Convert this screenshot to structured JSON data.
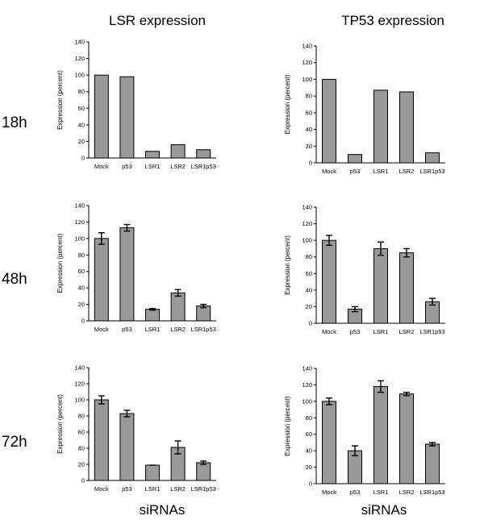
{
  "column_titles": [
    "LSR expression",
    "TP53 expression"
  ],
  "row_labels": [
    "18h",
    "48h",
    "72h"
  ],
  "x_axis_title": "siRNAs",
  "y_axis_label": "Expression (percent)",
  "chart_data": [
    {
      "type": "bar",
      "title": "LSR expression",
      "timepoint": "18h",
      "categories": [
        "Mock",
        "p53",
        "LSR1",
        "LSR2",
        "LSR1p53"
      ],
      "values": [
        100,
        98,
        8,
        16,
        10
      ],
      "errors": null,
      "ylabel": "Expression (percent)",
      "xlabel": "",
      "ylim": [
        0,
        140
      ],
      "yticks": [
        0,
        20,
        40,
        60,
        80,
        100,
        120,
        140
      ]
    },
    {
      "type": "bar",
      "title": "TP53 expression",
      "timepoint": "18h",
      "categories": [
        "Mock",
        "p53",
        "LSR1",
        "LSR2",
        "LSR1p53"
      ],
      "values": [
        100,
        10,
        87,
        85,
        12
      ],
      "errors": null,
      "ylabel": "Expression (percent)",
      "xlabel": "",
      "ylim": [
        0,
        140
      ],
      "yticks": [
        0,
        20,
        40,
        60,
        80,
        100,
        120,
        140
      ]
    },
    {
      "type": "bar",
      "title": "LSR expression",
      "timepoint": "48h",
      "categories": [
        "Mock",
        "p53",
        "LSR1",
        "LSR2",
        "LSR1p53"
      ],
      "values": [
        100,
        113,
        14,
        34,
        18
      ],
      "errors": [
        7,
        4,
        1,
        4,
        2
      ],
      "ylabel": "Expression (percent)",
      "xlabel": "",
      "ylim": [
        0,
        140
      ],
      "yticks": [
        0,
        20,
        40,
        60,
        80,
        100,
        120,
        140
      ]
    },
    {
      "type": "bar",
      "title": "TP53 expression",
      "timepoint": "48h",
      "categories": [
        "Mock",
        "p53",
        "LSR1",
        "LSR2",
        "LSR1p53"
      ],
      "values": [
        100,
        17,
        90,
        85,
        26
      ],
      "errors": [
        6,
        3,
        8,
        5,
        4
      ],
      "ylabel": "Expression (percent)",
      "xlabel": "",
      "ylim": [
        0,
        140
      ],
      "yticks": [
        0,
        20,
        40,
        60,
        80,
        100,
        120,
        140
      ]
    },
    {
      "type": "bar",
      "title": "LSR expression",
      "timepoint": "72h",
      "categories": [
        "Mock",
        "p53",
        "LSR1",
        "LSR2",
        "LSR1p53"
      ],
      "values": [
        100,
        83,
        19,
        41,
        22
      ],
      "errors": [
        5,
        4,
        0,
        8,
        2
      ],
      "ylabel": "Expression (percent)",
      "xlabel": "siRNAs",
      "ylim": [
        0,
        140
      ],
      "yticks": [
        0,
        20,
        40,
        60,
        80,
        100,
        120,
        140
      ]
    },
    {
      "type": "bar",
      "title": "TP53 expression",
      "timepoint": "72h",
      "categories": [
        "Mock",
        "p53",
        "LSR1",
        "LSR2",
        "LSR1p53"
      ],
      "values": [
        100,
        40,
        118,
        109,
        48
      ],
      "errors": [
        4,
        6,
        7,
        2,
        2
      ],
      "ylabel": "Expression (percent)",
      "xlabel": "siRNAs",
      "ylim": [
        0,
        140
      ],
      "yticks": [
        0,
        20,
        40,
        60,
        80,
        100,
        120,
        140
      ]
    }
  ],
  "colors": {
    "bar_fill": "#999999",
    "bar_stroke": "#000000",
    "axis": "#000000"
  }
}
